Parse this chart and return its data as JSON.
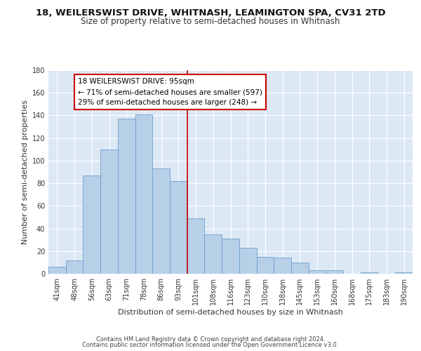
{
  "title": "18, WEILERSWIST DRIVE, WHITNASH, LEAMINGTON SPA, CV31 2TD",
  "subtitle": "Size of property relative to semi-detached houses in Whitnash",
  "xlabel": "Distribution of semi-detached houses by size in Whitnash",
  "ylabel": "Number of semi-detached properties",
  "categories": [
    "41sqm",
    "48sqm",
    "56sqm",
    "63sqm",
    "71sqm",
    "78sqm",
    "86sqm",
    "93sqm",
    "101sqm",
    "108sqm",
    "116sqm",
    "123sqm",
    "130sqm",
    "138sqm",
    "145sqm",
    "153sqm",
    "160sqm",
    "168sqm",
    "175sqm",
    "183sqm",
    "190sqm"
  ],
  "values": [
    6,
    12,
    87,
    110,
    137,
    141,
    93,
    82,
    49,
    35,
    31,
    23,
    15,
    14,
    10,
    3,
    3,
    0,
    1,
    0,
    1
  ],
  "bar_color": "#b8cfe8",
  "bar_edge_color": "#6aa0cc",
  "background_color": "#dde8f5",
  "grid_color": "#ffffff",
  "property_label": "18 WEILERSWIST DRIVE: 95sqm",
  "smaller_text": "← 71% of semi-detached houses are smaller (597)",
  "larger_text": "29% of semi-detached houses are larger (248) →",
  "annotation_box_color": "#cc0000",
  "line_x_index": 7.5,
  "ylim": [
    0,
    180
  ],
  "yticks": [
    0,
    20,
    40,
    60,
    80,
    100,
    120,
    140,
    160,
    180
  ],
  "footer_line1": "Contains HM Land Registry data © Crown copyright and database right 2024.",
  "footer_line2": "Contains public sector information licensed under the Open Government Licence v3.0.",
  "title_fontsize": 9.5,
  "subtitle_fontsize": 8.5,
  "ylabel_fontsize": 8,
  "xlabel_fontsize": 8,
  "tick_fontsize": 7,
  "annot_fontsize": 7.5
}
